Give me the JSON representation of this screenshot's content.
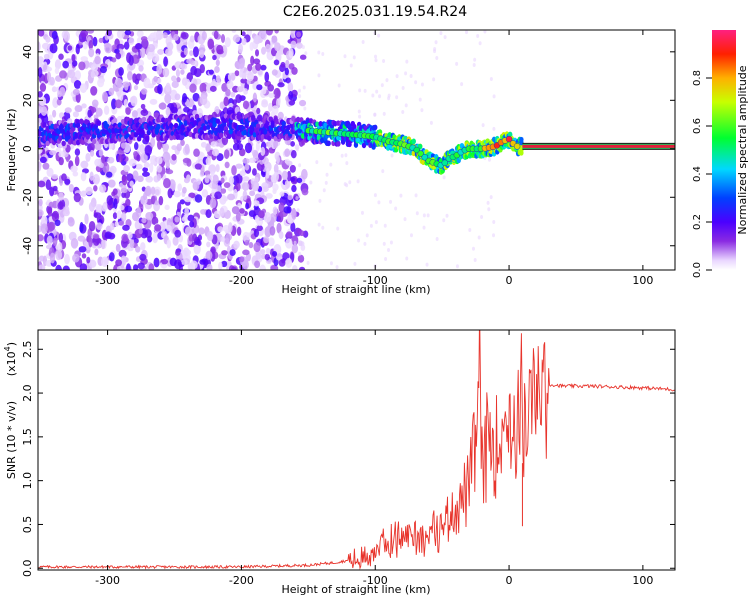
{
  "title": "C2E6.2025.031.19.54.R24",
  "chart_data": [
    {
      "type": "heatmap",
      "name": "spectrogram",
      "xlabel": "Height of straight line (km)",
      "ylabel": "Frequency (Hz)",
      "xlim": [
        -352,
        124
      ],
      "ylim": [
        -50,
        49
      ],
      "xticks": [
        -300,
        -200,
        -100,
        0,
        100
      ],
      "yticks": [
        -40,
        -20,
        0,
        20,
        40
      ],
      "colorbar": {
        "label": "Normalized spectral amplitude",
        "range": [
          0,
          1
        ],
        "ticks": [
          0.0,
          0.2,
          0.4,
          0.6,
          0.8
        ]
      },
      "ridge": [
        [
          -350,
          6
        ],
        [
          -320,
          7
        ],
        [
          -280,
          8
        ],
        [
          -250,
          9
        ],
        [
          -200,
          9
        ],
        [
          -160,
          8
        ],
        [
          -140,
          7
        ],
        [
          -120,
          6
        ],
        [
          -100,
          5
        ],
        [
          -90,
          3
        ],
        [
          -80,
          2
        ],
        [
          -70,
          0
        ],
        [
          -60,
          -5
        ],
        [
          -50,
          -7
        ],
        [
          -45,
          -4
        ],
        [
          -40,
          -3
        ],
        [
          -35,
          -1
        ],
        [
          -30,
          0
        ],
        [
          -20,
          0
        ],
        [
          -10,
          1
        ],
        [
          -5,
          3
        ],
        [
          0,
          4
        ],
        [
          5,
          1
        ],
        [
          10,
          1
        ],
        [
          124,
          1
        ]
      ],
      "tone_line": {
        "from_x": 10,
        "to_x": 124,
        "y": 1
      }
    },
    {
      "type": "line",
      "name": "snr",
      "xlabel": "Height of straight line (km)",
      "ylabel": "SNR (10 * v/v)",
      "yscale_label": "(x10",
      "yscale_exponent": "4",
      "xlim": [
        -352,
        124
      ],
      "ylim": [
        -0.02,
        2.72
      ],
      "xticks": [
        -300,
        -200,
        -100,
        0,
        100
      ],
      "yticks": [
        0.0,
        0.5,
        1.0,
        1.5,
        2.0,
        2.5
      ],
      "color": "#e8342c",
      "x": [
        -350,
        -200,
        -150,
        -130,
        -110,
        -100,
        -90,
        -80,
        -70,
        -60,
        -50,
        -40,
        -30,
        -25,
        -22,
        -20,
        -15,
        -10,
        -5,
        0,
        5,
        8,
        9,
        10,
        12,
        20,
        30,
        40,
        60,
        80,
        100,
        124
      ],
      "y": [
        0.0,
        0.0,
        0.02,
        0.05,
        0.1,
        0.22,
        0.3,
        0.35,
        0.4,
        0.35,
        0.5,
        0.7,
        0.9,
        1.4,
        2.25,
        1.0,
        1.6,
        1.35,
        1.65,
        1.7,
        1.55,
        2.0,
        2.72,
        1.2,
        1.6,
        1.95,
        2.1,
        2.08,
        2.08,
        2.07,
        2.06,
        2.04
      ]
    }
  ]
}
